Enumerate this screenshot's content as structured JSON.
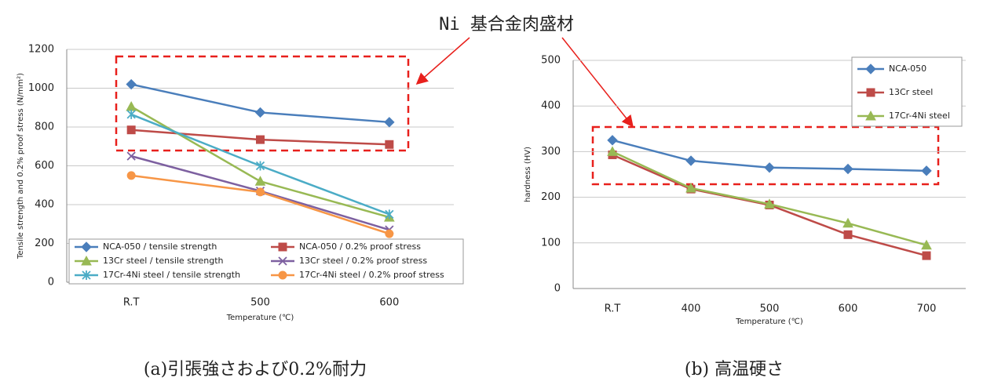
{
  "annotation": "Ni 基合金肉盛材",
  "captions": [
    "(a)引張強さおよび0.2%耐力",
    "(b) 高温硬さ"
  ],
  "chart_data": [
    {
      "type": "line",
      "x_label": "Temperature (℃)",
      "y_label": "Tensile strength and 0.2% proof stress (N/mm²)",
      "categories": [
        "R.T",
        "500",
        "600"
      ],
      "ylim": [
        0,
        1200
      ],
      "yticks": [
        0,
        200,
        400,
        600,
        800,
        1000,
        1200
      ],
      "grid": true,
      "legend": "lower center",
      "series": [
        {
          "name": "NCA-050 / tensile strength",
          "color": "#4a7ebb",
          "marker": "diamond",
          "values": [
            1020,
            875,
            825
          ]
        },
        {
          "name": "NCA-050 / 0.2% proof stress",
          "color": "#be4b48",
          "marker": "square",
          "values": [
            785,
            735,
            710
          ]
        },
        {
          "name": "13Cr steel /  tensile strength",
          "color": "#98b954",
          "marker": "triangle",
          "values": [
            905,
            520,
            335
          ]
        },
        {
          "name": "13Cr steel / 0.2% proof stress",
          "color": "#7d60a0",
          "marker": "x",
          "values": [
            650,
            470,
            270
          ]
        },
        {
          "name": "17Cr-4Ni steel /  tensile strength",
          "color": "#4bacc6",
          "marker": "star",
          "values": [
            865,
            600,
            350
          ]
        },
        {
          "name": "17Cr-4Ni steel / 0.2% proof stress",
          "color": "#f79646",
          "marker": "circle",
          "values": [
            550,
            465,
            250
          ]
        }
      ]
    },
    {
      "type": "line",
      "x_label": "Temperature (℃)",
      "y_label": "hardness (HV)",
      "categories": [
        "R.T",
        "400",
        "500",
        "600",
        "700"
      ],
      "ylim": [
        0,
        500
      ],
      "yticks": [
        0,
        100,
        200,
        300,
        400,
        500
      ],
      "grid": true,
      "legend": "upper right",
      "series": [
        {
          "name": "NCA-050",
          "color": "#4a7ebb",
          "marker": "diamond",
          "values": [
            325,
            280,
            265,
            262,
            258
          ]
        },
        {
          "name": "13Cr steel",
          "color": "#be4b48",
          "marker": "square",
          "values": [
            293,
            218,
            183,
            118,
            72
          ]
        },
        {
          "name": "17Cr-4Ni steel",
          "color": "#98b954",
          "marker": "triangle",
          "values": [
            300,
            220,
            185,
            143,
            95
          ]
        }
      ]
    }
  ]
}
